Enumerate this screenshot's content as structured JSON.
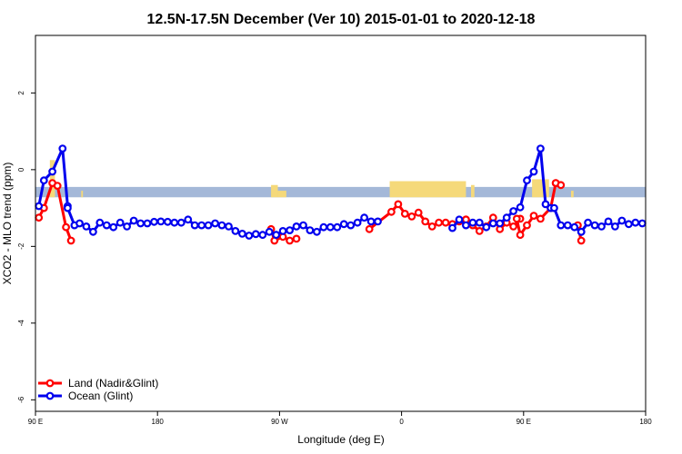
{
  "chart_data": {
    "type": "line",
    "title": "12.5N-17.5N December (Ver 10)   2015-01-01 to 2020-12-18",
    "xlabel": "Longitude (deg E)",
    "ylabel": "XCO2 - MLO trend (ppm)",
    "xlim": [
      90,
      450
    ],
    "ylim": [
      -6.3,
      3.5
    ],
    "x_ticks": [
      {
        "value": 90,
        "label": "90 E"
      },
      {
        "value": 162,
        "label": "180"
      },
      {
        "value": 234,
        "label": "90 W"
      },
      {
        "value": 306,
        "label": "0"
      },
      {
        "value": 378,
        "label": "90 E"
      },
      {
        "value": 450,
        "label": "180"
      }
    ],
    "y_ticks": [
      {
        "value": 2,
        "label": "2"
      },
      {
        "value": 0,
        "label": "0"
      },
      {
        "value": -2,
        "label": "-2"
      },
      {
        "value": -4,
        "label": "-4"
      },
      {
        "value": -6,
        "label": "-6"
      }
    ],
    "legend_position": "bottom-left",
    "colors": {
      "land": "#ff0000",
      "ocean": "#0000ee",
      "band_ocean": "#a4b8d8",
      "band_land": "#f5d97a"
    },
    "band": {
      "y_top": -0.45,
      "y_bottom": -0.72
    },
    "land_band_spans": [
      {
        "x_start": 98.5,
        "x_end": 101.5,
        "y_top": 0.25
      },
      {
        "x_start": 117,
        "x_end": 118,
        "y_top": -0.55
      },
      {
        "x_start": 229,
        "x_end": 233,
        "y_top": -0.4
      },
      {
        "x_start": 233,
        "x_end": 238,
        "y_top": -0.55
      },
      {
        "x_start": 299,
        "x_end": 344,
        "y_top": -0.3
      },
      {
        "x_start": 347,
        "x_end": 349,
        "y_top": -0.4
      },
      {
        "x_start": 383,
        "x_end": 393,
        "y_top": -0.25
      },
      {
        "x_start": 406,
        "x_end": 407.5,
        "y_top": -0.55
      }
    ],
    "series": [
      {
        "name": "Land (Nadir&Glint)",
        "color": "#ff0000",
        "segments": [
          {
            "x": [
              92,
              95,
              100,
              103,
              108,
              111
            ],
            "y": [
              -1.25,
              -1.0,
              -0.35,
              -0.42,
              -1.5,
              -1.85
            ]
          },
          {
            "x": [
              229,
              231,
              236,
              240,
              244
            ],
            "y": [
              -1.55,
              -1.85,
              -1.75,
              -1.85,
              -1.8
            ]
          },
          {
            "x": [
              287,
              300,
              304,
              308,
              312,
              316,
              320,
              324,
              328,
              332,
              336,
              340,
              344
            ],
            "y": [
              -1.55,
              -1.1,
              -0.9,
              -1.15,
              -1.22,
              -1.12,
              -1.35,
              -1.48,
              -1.38,
              -1.38,
              -1.42,
              -1.35,
              -1.3
            ]
          },
          {
            "x": [
              344,
              348,
              352,
              356,
              360,
              364,
              368,
              372,
              376
            ],
            "y": [
              -1.3,
              -1.45,
              -1.6,
              -1.48,
              -1.25,
              -1.55,
              -1.38,
              -1.48,
              -1.28
            ]
          },
          {
            "x": [
              374,
              376,
              380,
              384,
              388,
              394,
              397
            ],
            "y": [
              -1.28,
              -1.7,
              -1.45,
              -1.2,
              -1.28,
              -1.0,
              -0.35
            ]
          },
          {
            "x": [
              397,
              400
            ],
            "y": [
              -0.35,
              -0.4
            ]
          },
          {
            "x": [
              410,
              412
            ],
            "y": [
              -1.45,
              -1.85
            ]
          }
        ]
      },
      {
        "name": "Ocean (Glint)",
        "color": "#0000ee",
        "segments": [
          {
            "x": [
              92,
              95,
              100,
              106,
              109
            ],
            "y": [
              -0.95,
              -0.28,
              -0.05,
              0.55,
              -0.95
            ]
          },
          {
            "x": [
              109,
              113,
              116,
              120,
              124,
              128,
              132,
              136,
              140,
              144,
              148,
              152,
              156,
              160,
              164,
              168,
              172,
              176,
              180,
              184,
              188,
              192,
              196,
              200,
              204,
              208,
              212,
              216,
              220,
              224,
              228,
              232,
              236,
              240,
              244,
              248,
              252,
              256,
              260,
              264,
              268,
              272,
              276,
              280,
              284,
              288,
              292
            ],
            "y": [
              -1.0,
              -1.45,
              -1.4,
              -1.48,
              -1.62,
              -1.38,
              -1.45,
              -1.5,
              -1.38,
              -1.48,
              -1.33,
              -1.4,
              -1.4,
              -1.36,
              -1.35,
              -1.36,
              -1.38,
              -1.38,
              -1.3,
              -1.45,
              -1.45,
              -1.45,
              -1.4,
              -1.45,
              -1.48,
              -1.6,
              -1.67,
              -1.72,
              -1.68,
              -1.7,
              -1.62,
              -1.7,
              -1.6,
              -1.58,
              -1.48,
              -1.45,
              -1.58,
              -1.62,
              -1.5,
              -1.5,
              -1.5,
              -1.42,
              -1.45,
              -1.38,
              -1.25,
              -1.35,
              -1.35
            ]
          },
          {
            "x": [
              336,
              340,
              344,
              348,
              352,
              356,
              360,
              364,
              368,
              372,
              376,
              380,
              384,
              388,
              391,
              394,
              396,
              400,
              404,
              408,
              412
            ],
            "y": [
              -1.52,
              -1.3,
              -1.45,
              -1.38,
              -1.38,
              -1.5,
              -1.4,
              -1.4,
              -1.25,
              -1.08,
              -0.98,
              -0.28,
              -0.05,
              0.55,
              -0.9,
              -1.0,
              -1.0,
              -1.45,
              -1.45,
              -1.5,
              -1.62
            ]
          },
          {
            "x": [
              412,
              416,
              420,
              424,
              428,
              432,
              436,
              440,
              444,
              448
            ],
            "y": [
              -1.62,
              -1.38,
              -1.45,
              -1.48,
              -1.35,
              -1.48,
              -1.33,
              -1.42,
              -1.38,
              -1.4
            ]
          }
        ]
      }
    ]
  }
}
